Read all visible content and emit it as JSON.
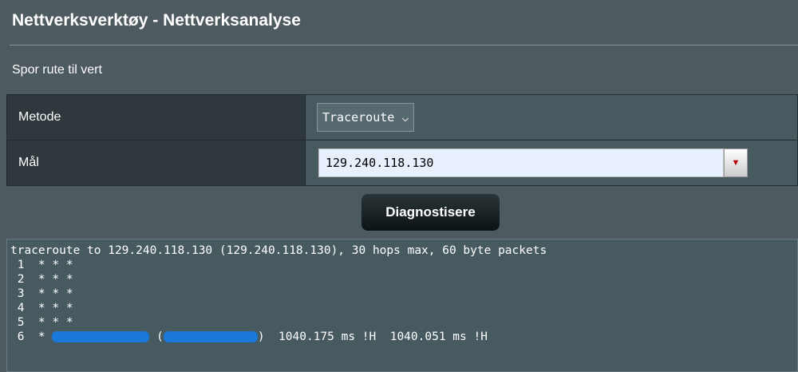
{
  "header": {
    "title": "Nettverksverktøy - Nettverksanalyse"
  },
  "section": {
    "subtitle": "Spor rute til vert"
  },
  "form": {
    "method_label": "Metode",
    "method_value": "Traceroute",
    "target_label": "Mål",
    "target_value": "129.240.118.130"
  },
  "diagnose_button": "Diagnostisere",
  "output": {
    "lines": [
      "traceroute to 129.240.118.130 (129.240.118.130), 30 hops max, 60 byte packets",
      " 1  * * *",
      " 2  * * *",
      " 3  * * *",
      " 4  * * *",
      " 5  * * *"
    ],
    "hop6_prefix": " 6  * ",
    "hop6_mid": " (",
    "hop6_suffix": ")  1040.175 ms !H  1040.051 ms !H"
  }
}
